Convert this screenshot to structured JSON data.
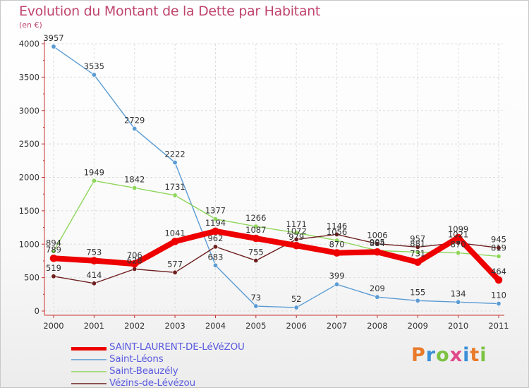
{
  "header": {
    "title": "Evolution du Montant de la Dette par Habitant",
    "unit": "(en €)"
  },
  "logo": {
    "text": "Proxiti",
    "letters": [
      "P",
      "r",
      "o",
      "x",
      "i",
      "t",
      "i"
    ]
  },
  "colors": {
    "title": "#c0446c",
    "legend_text": "#5a5ae0",
    "axis_text": "#333333",
    "grid": "#dddddd"
  },
  "chart_data": {
    "type": "line",
    "title": "Evolution du Montant de la Dette par Habitant",
    "ylabel": "(en €)",
    "xlabel": "",
    "x": [
      "2000",
      "2001",
      "2002",
      "2003",
      "2004",
      "2005",
      "2006",
      "2007",
      "2008",
      "2009",
      "2010",
      "2011"
    ],
    "ylim": [
      0,
      4000
    ],
    "yticks": [
      0,
      500,
      1000,
      1500,
      2000,
      2500,
      3000,
      3500,
      4000
    ],
    "grid": true,
    "legend_position": "bottom-left",
    "series": [
      {
        "name": "Saint-Léons",
        "color": "#5a9bd4",
        "values": [
          3957,
          3535,
          2729,
          2222,
          683,
          73,
          52,
          399,
          209,
          155,
          134,
          110
        ]
      },
      {
        "name": "Saint-Beauzély",
        "color": "#8ed65a",
        "values": [
          894,
          1949,
          1842,
          1731,
          1377,
          1266,
          1171,
          1056,
          905,
          881,
          870,
          819
        ]
      },
      {
        "name": "Vézins-de-Lévézou",
        "color": "#6e1e1e",
        "values": [
          519,
          414,
          628,
          577,
          962,
          755,
          1072,
          1146,
          1006,
          957,
          1021,
          945
        ]
      },
      {
        "name": "SAINT-LAURENT-DE-LéVéZOU",
        "color": "#ee0000",
        "values": [
          789,
          753,
          706,
          1041,
          1194,
          1087,
          979,
          870,
          884,
          731,
          1099,
          464
        ]
      }
    ]
  }
}
